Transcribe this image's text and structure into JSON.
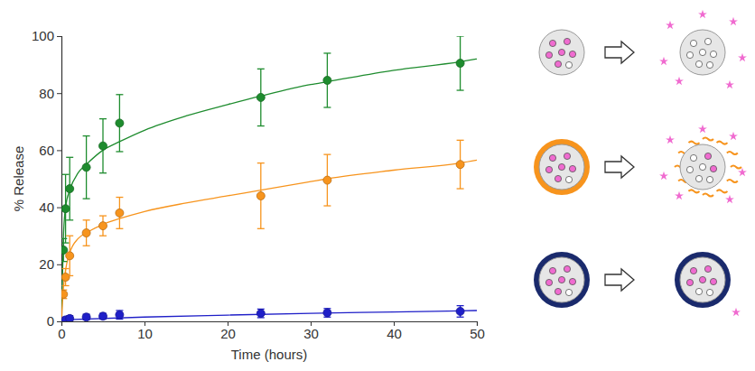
{
  "chart_data": {
    "type": "scatter",
    "x_label": "Time (hours)",
    "y_label": "% Release",
    "xlim": [
      0,
      50
    ],
    "xticks": [
      0,
      10,
      20,
      30,
      40,
      50
    ],
    "ylim": [
      0,
      100
    ],
    "yticks": [
      0,
      20,
      40,
      60,
      80,
      100
    ],
    "series": [
      {
        "color": "#1e8c2e",
        "marker": "circle",
        "x": [
          0.25,
          0.5,
          1,
          3,
          5,
          7,
          24,
          32,
          48
        ],
        "values": [
          25,
          39.5,
          46.5,
          54,
          61.5,
          69.5,
          78.5,
          84.5,
          90.5
        ],
        "errors": [
          4,
          12,
          11,
          11,
          9.5,
          10,
          10,
          9.5,
          9.5
        ]
      },
      {
        "color": "#f7941d",
        "marker": "circle",
        "x": [
          0.25,
          0.5,
          1,
          3,
          5,
          7,
          24,
          32,
          48
        ],
        "values": [
          9.5,
          15.5,
          23,
          31,
          33.5,
          38,
          44,
          49.5,
          55
        ],
        "errors": [
          1.5,
          3,
          7,
          4.5,
          3.5,
          5.5,
          11.5,
          9,
          8.5
        ]
      },
      {
        "color": "#1f1fc8",
        "marker": "circle",
        "x": [
          0.5,
          1,
          3,
          5,
          7,
          24,
          32,
          48
        ],
        "values": [
          0.5,
          1,
          1.5,
          1.8,
          2.3,
          2.8,
          3,
          3.5
        ],
        "errors": [
          1,
          1,
          1,
          1,
          1.5,
          1.5,
          1.5,
          2
        ]
      },
      {
        "type": "line",
        "color": "#1e8c2e",
        "line_style": "solid",
        "x": [
          0,
          0.25,
          0.5,
          1,
          2,
          3,
          5,
          7,
          10,
          15,
          20,
          24,
          30,
          32,
          40,
          48,
          50
        ],
        "values": [
          0,
          30,
          40,
          46,
          52,
          55,
          60,
          63,
          67,
          72,
          76,
          79,
          83,
          84,
          88,
          91,
          92
        ]
      },
      {
        "type": "line",
        "color": "#f7941d",
        "line_style": "solid",
        "x": [
          0,
          0.25,
          0.5,
          1,
          2,
          3,
          5,
          7,
          10,
          15,
          20,
          24,
          30,
          32,
          40,
          48,
          50
        ],
        "values": [
          0,
          12,
          18,
          24,
          29,
          31,
          34,
          36,
          38.5,
          41.5,
          44,
          46,
          49,
          50,
          53,
          55.5,
          56.5
        ]
      },
      {
        "type": "line",
        "color": "#1f1fc8",
        "line_style": "solid",
        "x": [
          0,
          10,
          20,
          30,
          40,
          50
        ],
        "values": [
          0.5,
          1.5,
          2.2,
          2.8,
          3.3,
          3.8
        ]
      }
    ]
  }
}
